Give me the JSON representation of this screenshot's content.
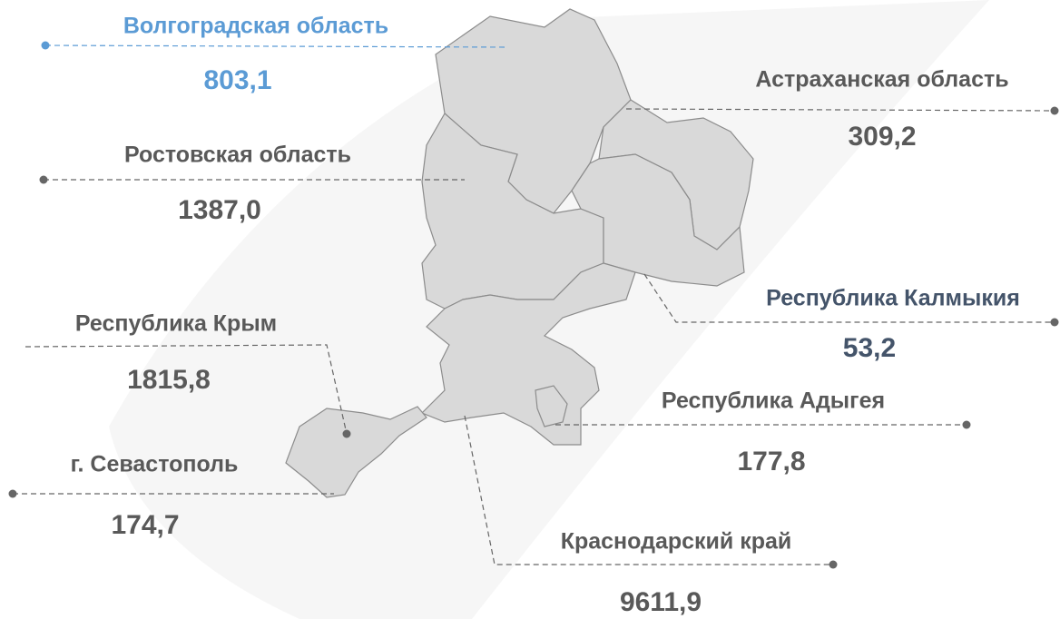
{
  "regions": [
    {
      "name": "Волгоградская область",
      "value": "803,1",
      "color": "#5b9bd5"
    },
    {
      "name": "Ростовская область",
      "value": "1387,0",
      "color": "#595959"
    },
    {
      "name": "Республика Крым",
      "value": "1815,8",
      "color": "#595959"
    },
    {
      "name": "г. Севастополь",
      "value": "174,7",
      "color": "#595959"
    },
    {
      "name": "Астраханская область",
      "value": "309,2",
      "color": "#595959"
    },
    {
      "name": "Республика Калмыкия",
      "value": "53,2",
      "color": "#44546a"
    },
    {
      "name": "Республика Адыгея",
      "value": "177,8",
      "color": "#595959"
    },
    {
      "name": "Краснодарский край",
      "value": "9611,9",
      "color": "#595959"
    }
  ]
}
